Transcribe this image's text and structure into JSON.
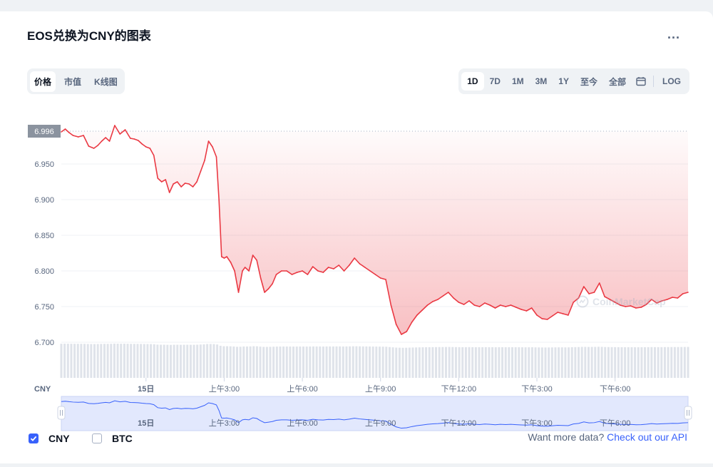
{
  "header": {
    "title": "EOS兑换为CNY的图表",
    "more_label": "..."
  },
  "tabs": [
    {
      "label": "价格",
      "active": true
    },
    {
      "label": "市值",
      "active": false
    },
    {
      "label": "K线图",
      "active": false
    }
  ],
  "ranges": {
    "items": [
      {
        "label": "1D",
        "active": true
      },
      {
        "label": "7D",
        "active": false
      },
      {
        "label": "1M",
        "active": false
      },
      {
        "label": "3M",
        "active": false
      },
      {
        "label": "1Y",
        "active": false
      },
      {
        "label": "至今",
        "active": false
      },
      {
        "label": "全部",
        "active": false
      }
    ],
    "calendar_icon": "calendar-icon",
    "log_label": "LOG"
  },
  "legend": {
    "cny_label": "CNY",
    "btc_label": "BTC",
    "cny_checked": true,
    "btc_checked": false
  },
  "footer": {
    "text": "Want more data?",
    "link": "Check out our API"
  },
  "watermark": "CoinMarketCap",
  "colors": {
    "up": "#16c784",
    "down": "#ea3943",
    "accent": "#3861fb",
    "current_label_bg": "#8b939f"
  },
  "chart_data": {
    "type": "line",
    "title": "EOS兑换为CNY的图表",
    "ylabel": "CNY",
    "current_value": "6.996",
    "current_value_num": 6.996,
    "y_ticks": [
      "6.950",
      "6.900",
      "6.850",
      "6.800",
      "6.750",
      "6.700"
    ],
    "y_tick_values": [
      6.95,
      6.9,
      6.85,
      6.8,
      6.75,
      6.7
    ],
    "ylim": [
      6.65,
      7.025
    ],
    "x_ticks": [
      "15日",
      "上午3:00",
      "上午6:00",
      "上午9:00",
      "下午12:00",
      "下午3:00",
      "下午6:00"
    ],
    "x_tick_hours": [
      0,
      3,
      6,
      9,
      12,
      15,
      18
    ],
    "x_range_hours": [
      -3.25,
      20.8
    ],
    "series": [
      {
        "x": [
          -3.25,
          -3.1,
          -2.95,
          -2.8,
          -2.6,
          -2.4,
          -2.2,
          -2.0,
          -1.85,
          -1.7,
          -1.55,
          -1.4,
          -1.2,
          -1.0,
          -0.8,
          -0.6,
          -0.45,
          -0.3,
          -0.15,
          0.0,
          0.15,
          0.3,
          0.45,
          0.6,
          0.75,
          0.9,
          1.05,
          1.2,
          1.35,
          1.5,
          1.65,
          1.8,
          1.95,
          2.1,
          2.25,
          2.4,
          2.55,
          2.7,
          2.8,
          2.9,
          3.0,
          3.1,
          3.25,
          3.4,
          3.55,
          3.7,
          3.8,
          3.95,
          4.1,
          4.25,
          4.4,
          4.55,
          4.7,
          4.85,
          5.0,
          5.2,
          5.4,
          5.6,
          5.8,
          6.0,
          6.2,
          6.4,
          6.6,
          6.8,
          7.0,
          7.2,
          7.4,
          7.6,
          7.8,
          8.0,
          8.2,
          8.4,
          8.6,
          8.8,
          9.0,
          9.2,
          9.4,
          9.6,
          9.8,
          10.0,
          10.2,
          10.4,
          10.6,
          10.8,
          11.0,
          11.2,
          11.4,
          11.6,
          11.8,
          12.0,
          12.2,
          12.4,
          12.6,
          12.8,
          13.0,
          13.2,
          13.4,
          13.6,
          13.8,
          14.0,
          14.2,
          14.4,
          14.6,
          14.8,
          15.0,
          15.2,
          15.4,
          15.6,
          15.8,
          16.0,
          16.2,
          16.4,
          16.6,
          16.8,
          17.0,
          17.2,
          17.4,
          17.6,
          17.8,
          18.0,
          18.2,
          18.4,
          18.6,
          18.8,
          19.0,
          19.2,
          19.4,
          19.6,
          19.8,
          20.0,
          20.2,
          20.4,
          20.6,
          20.8
        ],
        "y": [
          6.995,
          6.999,
          6.994,
          6.99,
          6.988,
          6.99,
          6.975,
          6.972,
          6.976,
          6.982,
          6.987,
          6.982,
          7.004,
          6.992,
          6.998,
          6.986,
          6.985,
          6.983,
          6.978,
          6.974,
          6.972,
          6.962,
          6.93,
          6.925,
          6.928,
          6.91,
          6.922,
          6.925,
          6.918,
          6.923,
          6.922,
          6.918,
          6.925,
          6.94,
          6.955,
          6.982,
          6.974,
          6.96,
          6.9,
          6.82,
          6.818,
          6.82,
          6.812,
          6.8,
          6.77,
          6.8,
          6.805,
          6.8,
          6.822,
          6.815,
          6.79,
          6.77,
          6.775,
          6.782,
          6.795,
          6.8,
          6.8,
          6.795,
          6.798,
          6.8,
          6.795,
          6.806,
          6.8,
          6.798,
          6.805,
          6.803,
          6.808,
          6.8,
          6.808,
          6.818,
          6.81,
          6.805,
          6.8,
          6.795,
          6.79,
          6.788,
          6.752,
          6.725,
          6.711,
          6.715,
          6.728,
          6.738,
          6.745,
          6.752,
          6.757,
          6.76,
          6.765,
          6.77,
          6.762,
          6.756,
          6.753,
          6.758,
          6.752,
          6.75,
          6.755,
          6.752,
          6.748,
          6.752,
          6.75,
          6.752,
          6.749,
          6.746,
          6.744,
          6.748,
          6.738,
          6.733,
          6.732,
          6.737,
          6.742,
          6.74,
          6.738,
          6.756,
          6.762,
          6.778,
          6.768,
          6.77,
          6.783,
          6.764,
          6.76,
          6.756,
          6.752,
          6.75,
          6.751,
          6.748,
          6.749,
          6.753,
          6.76,
          6.755,
          6.758,
          6.76,
          6.763,
          6.762,
          6.768,
          6.77
        ]
      }
    ],
    "volume_note": "bars"
  },
  "navigator": {
    "x_ticks": [
      "15日",
      "上午3:00",
      "上午6:00",
      "上午9:00",
      "下午12:00",
      "下午3:00",
      "下午6:00"
    ]
  }
}
